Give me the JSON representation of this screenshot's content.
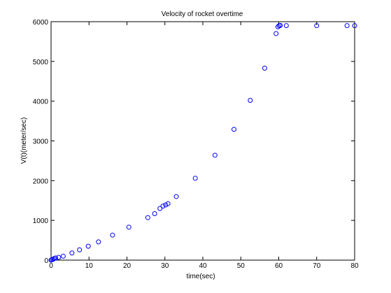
{
  "chart_data": {
    "type": "scatter",
    "title": "Velocity of rocket overtime",
    "xlabel": "time(sec)",
    "ylabel": "V(t)(meter/sec)",
    "xlim": [
      0,
      80
    ],
    "ylim": [
      0,
      6000
    ],
    "x_ticks": [
      0,
      10,
      20,
      30,
      40,
      50,
      60,
      70,
      80
    ],
    "y_ticks": [
      0,
      1000,
      2000,
      3000,
      4000,
      5000,
      6000
    ],
    "grid": false,
    "legend": "none",
    "marker": "circle-open",
    "marker_color": "#0000ff",
    "series": [
      {
        "x": [
          0,
          0.2,
          0.5,
          0.8,
          1.2,
          2,
          3.2,
          5.5,
          7.5,
          9.8,
          12.5,
          16.2,
          20.5,
          25.5,
          27.3,
          28.7,
          29.5,
          30.2,
          30.8,
          33,
          38,
          43.2,
          48.2,
          52.5,
          56.3,
          59.3,
          59.8,
          60.1,
          60.4,
          62,
          70,
          78,
          80
        ],
        "y": [
          0,
          10,
          20,
          40,
          55,
          70,
          100,
          180,
          260,
          350,
          460,
          630,
          830,
          1070,
          1170,
          1300,
          1360,
          1390,
          1420,
          1600,
          2060,
          2640,
          3290,
          4020,
          4830,
          5700,
          5870,
          5900,
          5905,
          5900,
          5900,
          5900,
          5900
        ]
      }
    ]
  }
}
